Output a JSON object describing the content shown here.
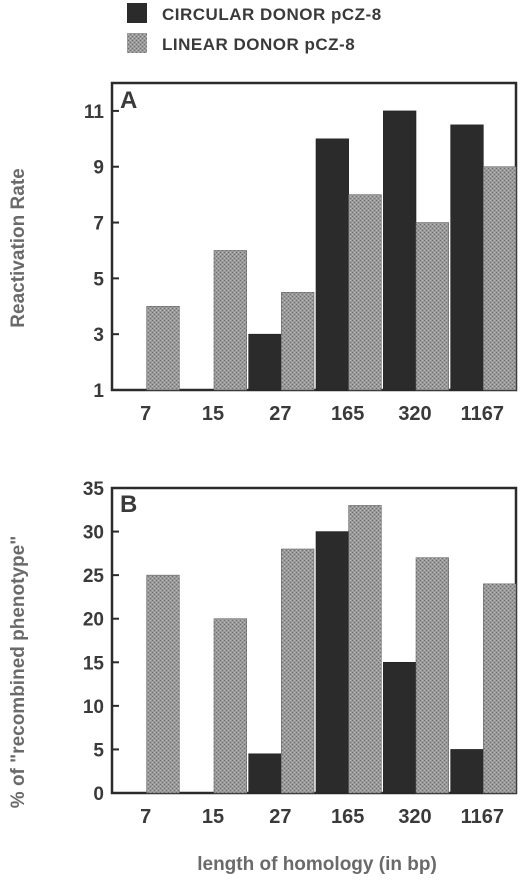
{
  "legend": [
    {
      "label": "CIRCULAR DONOR pCZ-8",
      "color": "#2b2b2b"
    },
    {
      "label": "LINEAR DONOR pCZ-8",
      "color": "#8f8f8f"
    }
  ],
  "chart_data": [
    {
      "type": "bar",
      "panel": "A",
      "ylabel": "Reactivation Rate",
      "xlabel": "",
      "ylim": [
        1,
        12
      ],
      "yticks": [
        1,
        3,
        5,
        7,
        9,
        11
      ],
      "categories": [
        "7",
        "15",
        "27",
        "165",
        "320",
        "1167"
      ],
      "series": [
        {
          "values": [
            null,
            null,
            3,
            10,
            11,
            10.5
          ]
        },
        {
          "values": [
            4,
            6,
            4.5,
            8,
            7,
            9
          ]
        }
      ]
    },
    {
      "type": "bar",
      "panel": "B",
      "ylabel": "% of \"recombined phenotype\"",
      "xlabel": "length of homology (in bp)",
      "ylim": [
        0,
        35
      ],
      "yticks": [
        0,
        5,
        10,
        15,
        20,
        25,
        30,
        35
      ],
      "categories": [
        "7",
        "15",
        "27",
        "165",
        "320",
        "1167"
      ],
      "series": [
        {
          "values": [
            null,
            null,
            4.5,
            30,
            15,
            5
          ]
        },
        {
          "values": [
            25,
            20,
            28,
            33,
            27,
            24
          ]
        }
      ]
    }
  ]
}
